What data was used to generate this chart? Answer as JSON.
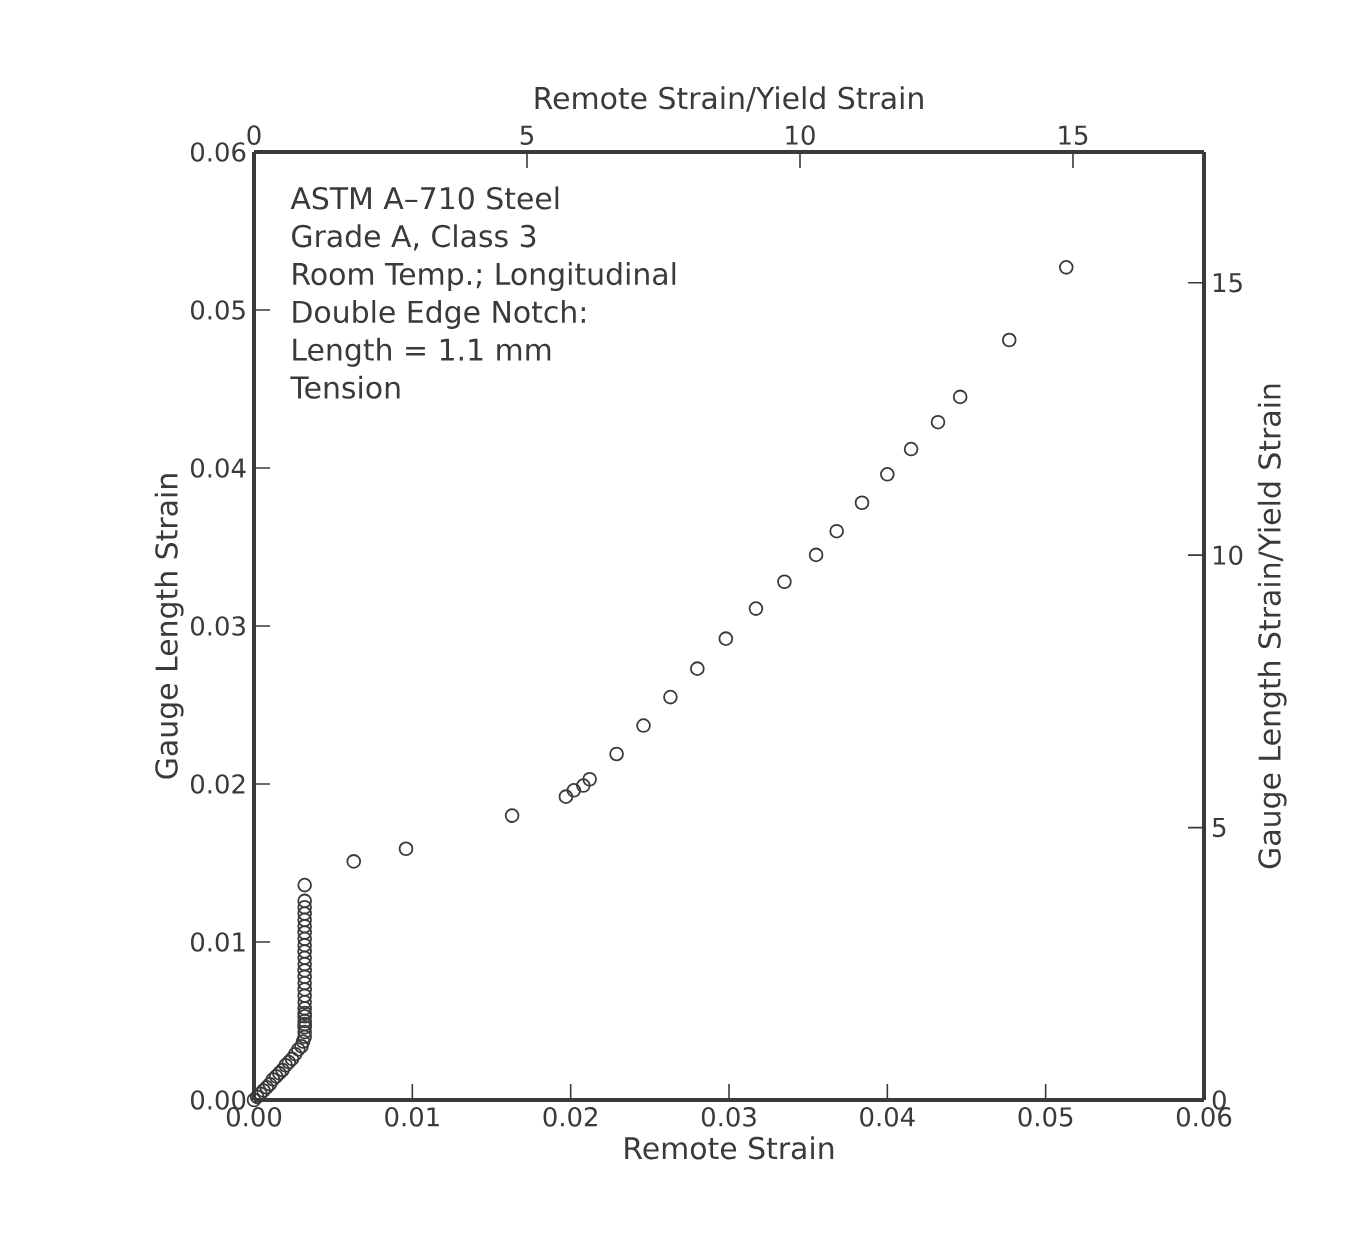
{
  "chart_data": {
    "type": "scatter",
    "xlabel": "Remote Strain",
    "ylabel": "Gauge Length Strain",
    "x2label": "Remote Strain/Yield Strain",
    "y2label": "Gauge Length Strain/Yield Strain",
    "annotations": [
      "ASTM A–710 Steel",
      "Grade A, Class 3",
      "Room Temp.; Longitudinal",
      "Double Edge Notch:",
      "Length = 1.1 mm",
      "Tension"
    ],
    "x": [
      0,
      0.0002,
      0.0004,
      0.0006,
      0.0008,
      0.001,
      0.0012,
      0.0014,
      0.0016,
      0.0018,
      0.002,
      0.0022,
      0.0024,
      0.0026,
      0.0028,
      0.003,
      0.0031,
      0.0032,
      0.0032,
      0.0032,
      0.0032,
      0.0032,
      0.0032,
      0.0032,
      0.0032,
      0.0032,
      0.0032,
      0.0032,
      0.0032,
      0.0032,
      0.0032,
      0.0032,
      0.0032,
      0.0032,
      0.0032,
      0.0032,
      0.0032,
      0.0032,
      0.0032,
      0.0032,
      0.0032,
      0.0032,
      0.0032,
      0.0063,
      0.0096,
      0.0163,
      0.0197,
      0.0202,
      0.0208,
      0.0212,
      0.0229,
      0.0246,
      0.0263,
      0.028,
      0.0298,
      0.0317,
      0.0335,
      0.0355,
      0.0368,
      0.0384,
      0.04,
      0.0415,
      0.0432,
      0.0446,
      0.0477,
      0.0513
    ],
    "values": [
      0,
      0.0002,
      0.0004,
      0.0006,
      0.0008,
      0.001,
      0.0013,
      0.0015,
      0.0017,
      0.0019,
      0.0022,
      0.0024,
      0.0026,
      0.0029,
      0.0032,
      0.0034,
      0.0037,
      0.004,
      0.0043,
      0.0046,
      0.0048,
      0.005,
      0.0053,
      0.0055,
      0.0058,
      0.0062,
      0.0066,
      0.007,
      0.0074,
      0.0078,
      0.0082,
      0.0086,
      0.009,
      0.0094,
      0.0098,
      0.0102,
      0.0106,
      0.011,
      0.0114,
      0.0118,
      0.0122,
      0.0126,
      0.0136,
      0.0151,
      0.0159,
      0.018,
      0.0192,
      0.0196,
      0.0199,
      0.0203,
      0.0219,
      0.0237,
      0.0255,
      0.0273,
      0.0292,
      0.0311,
      0.0328,
      0.0345,
      0.036,
      0.0378,
      0.0396,
      0.0412,
      0.0429,
      0.0445,
      0.0481,
      0.0527
    ],
    "color": "#3a3a3a",
    "marker": "circle",
    "xlim": [
      0,
      0.06
    ],
    "xticks": [
      {
        "value": 0,
        "label": "0.00"
      },
      {
        "value": 0.01,
        "label": "0.01"
      },
      {
        "value": 0.02,
        "label": "0.02"
      },
      {
        "value": 0.03,
        "label": "0.03"
      },
      {
        "value": 0.04,
        "label": "0.04"
      },
      {
        "value": 0.05,
        "label": "0.05"
      },
      {
        "value": 0.06,
        "label": "0.06"
      }
    ],
    "ylim": [
      0,
      0.06
    ],
    "yticks": [
      {
        "value": 0,
        "label": "0.00"
      },
      {
        "value": 0.01,
        "label": "0.01"
      },
      {
        "value": 0.02,
        "label": "0.02"
      },
      {
        "value": 0.03,
        "label": "0.03"
      },
      {
        "value": 0.04,
        "label": "0.04"
      },
      {
        "value": 0.05,
        "label": "0.05"
      },
      {
        "value": 0.06,
        "label": "0.06"
      }
    ],
    "x2lim": [
      0,
      17.4
    ],
    "x2ticks": [
      0,
      5,
      10,
      15
    ],
    "y2lim": [
      0,
      17.4
    ],
    "y2ticks": [
      0,
      5,
      10,
      15
    ]
  }
}
